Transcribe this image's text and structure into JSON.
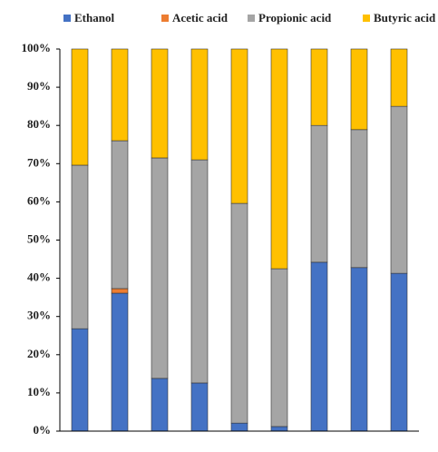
{
  "chart_data": {
    "type": "stacked_bar",
    "categories": [
      null,
      null,
      null,
      null,
      null,
      null,
      null,
      null,
      null
    ],
    "series": [
      {
        "name": "Ethanol",
        "color": "#4472c4",
        "values": [
          26.8,
          36.1,
          13.8,
          12.6,
          2.1,
          1.2,
          44.2,
          42.8,
          41.3
        ]
      },
      {
        "name": "Acetic acid",
        "color": "#ed7d31",
        "values": [
          0,
          1.2,
          0,
          0,
          0,
          0,
          0,
          0,
          0
        ]
      },
      {
        "name": "Propionic acid",
        "color": "#a5a5a5",
        "values": [
          42.8,
          38.7,
          57.7,
          58.4,
          57.5,
          41.3,
          35.8,
          36.1,
          43.7
        ]
      },
      {
        "name": "Butyric acid",
        "color": "#ffc000",
        "values": [
          30.4,
          24.0,
          28.5,
          29.0,
          40.4,
          57.5,
          20.0,
          21.1,
          15.0
        ]
      }
    ],
    "ylim": [
      0,
      100
    ],
    "yticks": [
      {
        "value": 0,
        "label": "0%"
      },
      {
        "value": 10,
        "label": "10%"
      },
      {
        "value": 20,
        "label": "20%"
      },
      {
        "value": 30,
        "label": "30%"
      },
      {
        "value": 40,
        "label": "40%"
      },
      {
        "value": 50,
        "label": "50%"
      },
      {
        "value": 60,
        "label": "60%"
      },
      {
        "value": 70,
        "label": "70%"
      },
      {
        "value": 80,
        "label": "80%"
      },
      {
        "value": 90,
        "label": "90%"
      },
      {
        "value": 100,
        "label": "100%"
      }
    ],
    "legend": "top"
  }
}
